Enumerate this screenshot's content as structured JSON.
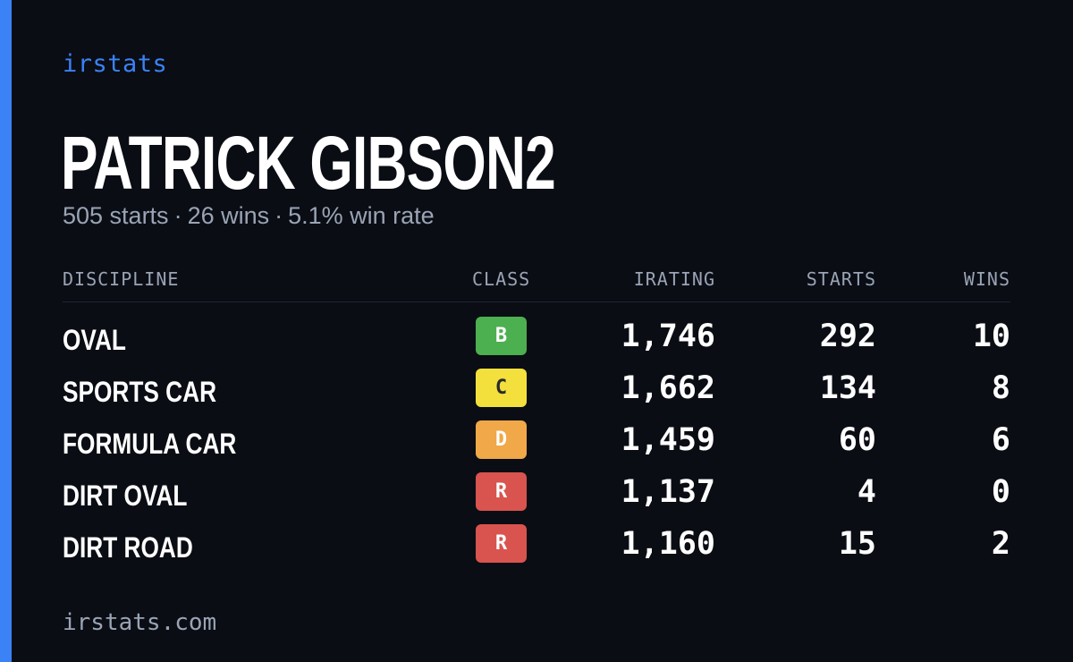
{
  "brand": "irstats",
  "player_name": "PATRICK GIBSON2",
  "summary": {
    "starts": "505 starts",
    "wins": "26 wins",
    "win_rate": "5.1% win rate",
    "separator": "·"
  },
  "table": {
    "headers": {
      "discipline": "DISCIPLINE",
      "class": "CLASS",
      "irating": "IRATING",
      "starts": "STARTS",
      "wins": "WINS"
    },
    "rows": [
      {
        "discipline": "OVAL",
        "class": "B",
        "class_bg": "#4caf50",
        "class_fg": "#ffffff",
        "irating": "1,746",
        "starts": "292",
        "wins": "10"
      },
      {
        "discipline": "SPORTS CAR",
        "class": "C",
        "class_bg": "#f3e03c",
        "class_fg": "#2a2a2a",
        "irating": "1,662",
        "starts": "134",
        "wins": "8"
      },
      {
        "discipline": "FORMULA CAR",
        "class": "D",
        "class_bg": "#f0a848",
        "class_fg": "#ffffff",
        "irating": "1,459",
        "starts": "60",
        "wins": "6"
      },
      {
        "discipline": "DIRT OVAL",
        "class": "R",
        "class_bg": "#d9534f",
        "class_fg": "#ffffff",
        "irating": "1,137",
        "starts": "4",
        "wins": "0"
      },
      {
        "discipline": "DIRT ROAD",
        "class": "R",
        "class_bg": "#d9534f",
        "class_fg": "#ffffff",
        "irating": "1,160",
        "starts": "15",
        "wins": "2"
      }
    ]
  },
  "footer": "irstats.com",
  "colors": {
    "accent": "#3b82f6",
    "background": "#0a0d14",
    "muted_text": "#9aa4b5"
  }
}
